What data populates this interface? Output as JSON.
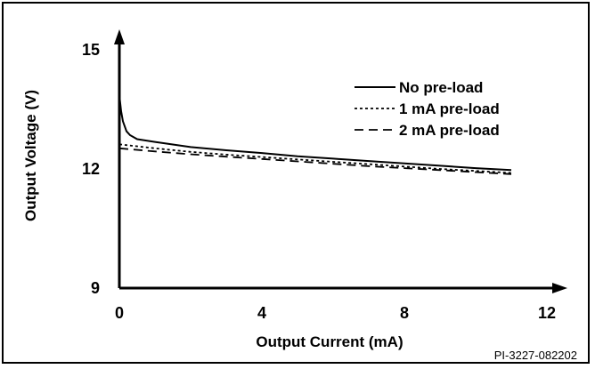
{
  "chart_data": {
    "type": "line",
    "title": "",
    "xlabel": "Output Current (mA)",
    "ylabel": "Output Voltage (V)",
    "xlim": [
      0,
      12
    ],
    "ylim": [
      9,
      15
    ],
    "x_ticks": [
      "0",
      "4",
      "8",
      "12"
    ],
    "y_ticks": [
      "9",
      "12",
      "15"
    ],
    "grid": false,
    "legend_position": "top-right",
    "series": [
      {
        "name": "No pre-load",
        "style": "solid",
        "x": [
          0,
          0.05,
          0.1,
          0.2,
          0.3,
          0.5,
          1,
          2,
          3,
          4,
          5,
          6,
          7,
          8,
          9,
          10,
          11
        ],
        "y": [
          13.85,
          13.45,
          13.2,
          12.95,
          12.85,
          12.75,
          12.68,
          12.55,
          12.47,
          12.4,
          12.32,
          12.26,
          12.2,
          12.14,
          12.08,
          12.02,
          11.97
        ]
      },
      {
        "name": "1 mA pre-load",
        "style": "dotted",
        "x": [
          0,
          1,
          2,
          3,
          4,
          5,
          6,
          7,
          8,
          9,
          10,
          11
        ],
        "y": [
          12.62,
          12.52,
          12.43,
          12.36,
          12.3,
          12.24,
          12.18,
          12.12,
          12.06,
          12.0,
          11.95,
          11.9
        ]
      },
      {
        "name": "2 mA pre-load",
        "style": "dashed",
        "x": [
          0,
          1,
          2,
          3,
          4,
          5,
          6,
          7,
          8,
          9,
          10,
          11
        ],
        "y": [
          12.52,
          12.44,
          12.37,
          12.31,
          12.25,
          12.19,
          12.13,
          12.07,
          12.02,
          11.97,
          11.92,
          11.87
        ]
      }
    ]
  },
  "footnote": "PI-3227-082202"
}
